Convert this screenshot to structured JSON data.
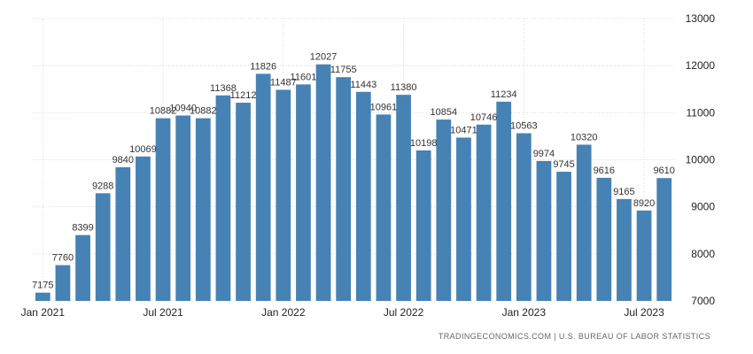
{
  "chart_data": {
    "type": "bar",
    "categories": [
      "Jan 2021",
      "Feb 2021",
      "Mar 2021",
      "Apr 2021",
      "May 2021",
      "Jun 2021",
      "Jul 2021",
      "Aug 2021",
      "Sep 2021",
      "Oct 2021",
      "Nov 2021",
      "Dec 2021",
      "Jan 2022",
      "Feb 2022",
      "Mar 2022",
      "Apr 2022",
      "May 2022",
      "Jun 2022",
      "Jul 2022",
      "Aug 2022",
      "Sep 2022",
      "Oct 2022",
      "Nov 2022",
      "Dec 2022",
      "Jan 2023",
      "Feb 2023",
      "Mar 2023",
      "Apr 2023",
      "May 2023",
      "Jun 2023",
      "Jul 2023",
      "Aug 2023"
    ],
    "values": [
      7175,
      7760,
      8399,
      9288,
      9840,
      10069,
      10882,
      10940,
      10882,
      11368,
      11212,
      11826,
      11487,
      11601,
      12027,
      11755,
      11443,
      10961,
      11380,
      10198,
      10854,
      10471,
      10746,
      11234,
      10563,
      9974,
      9745,
      10320,
      9616,
      9165,
      8920,
      9610
    ],
    "xticks": [
      {
        "index": 0,
        "label": "Jan 2021"
      },
      {
        "index": 6,
        "label": "Jul 2021"
      },
      {
        "index": 12,
        "label": "Jan 2022"
      },
      {
        "index": 18,
        "label": "Jul 2022"
      },
      {
        "index": 24,
        "label": "Jan 2023"
      },
      {
        "index": 30,
        "label": "Jul 2023"
      }
    ],
    "yticks": [
      "7000",
      "8000",
      "9000",
      "10000",
      "11000",
      "12000",
      "13000"
    ],
    "ylim": [
      7000,
      13000
    ],
    "grid": true,
    "bar_color": "#4682b4",
    "grid_color": "#d9d9d9"
  },
  "source": "TRADINGECONOMICS.COM | U.S. BUREAU OF LABOR STATISTICS"
}
